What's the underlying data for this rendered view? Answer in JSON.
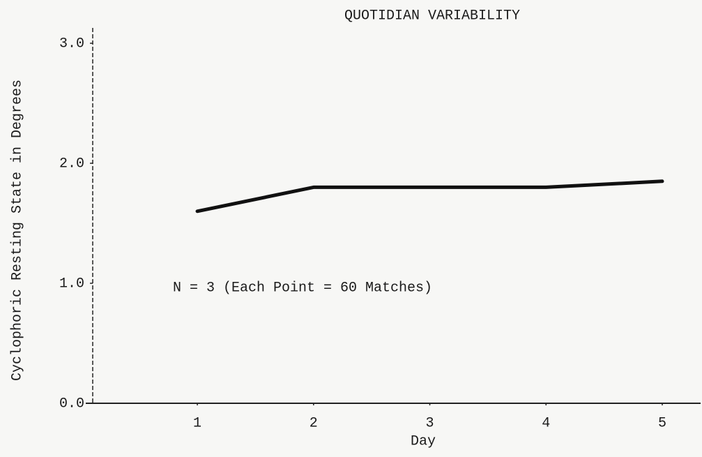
{
  "chart_data": {
    "type": "line",
    "title": "QUOTIDIAN VARIABILITY",
    "x_label": "Day",
    "y_label": "Cyclophoric Resting State in Degrees",
    "annotation": "N = 3 (Each Point = 60 Matches)",
    "x": [
      1,
      2,
      3,
      4,
      5
    ],
    "series": [
      {
        "color": "#111111",
        "values": [
          1.6,
          1.8,
          1.8,
          1.8,
          1.85
        ]
      }
    ],
    "xlim": [
      0.1,
      5.33
    ],
    "xticks": [
      1,
      2,
      3,
      4,
      5
    ],
    "ylim": [
      0,
      3
    ],
    "yticks": [
      {
        "value": 0,
        "label": "0.0"
      },
      {
        "value": 1,
        "label": "1.0"
      },
      {
        "value": 2,
        "label": "2.0"
      },
      {
        "value": 3,
        "label": "3.0"
      }
    ],
    "grid": false
  }
}
